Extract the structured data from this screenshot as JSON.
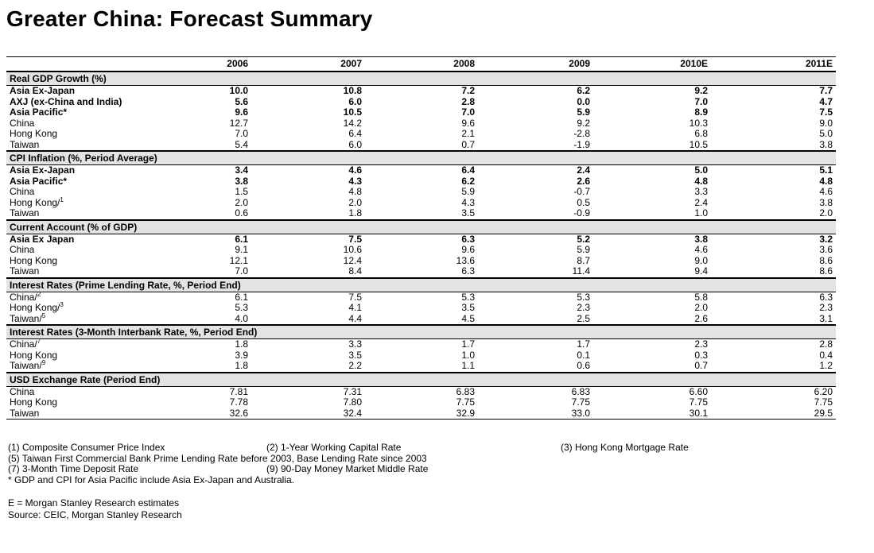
{
  "page": {
    "title": "Greater China: Forecast Summary"
  },
  "colors": {
    "section_header_bg": "#e3e3e3",
    "rule": "#000000"
  },
  "table": {
    "columns": [
      "2006",
      "2007",
      "2008",
      "2009",
      "2010E",
      "2011E"
    ],
    "sections": [
      {
        "header": "Real GDP Growth (%)",
        "rows": [
          {
            "label": "Asia Ex-Japan",
            "sup": "",
            "bold": true,
            "values": [
              "10.0",
              "10.8",
              "7.2",
              "6.2",
              "9.2",
              "7.7"
            ]
          },
          {
            "label": "AXJ (ex-China and India)",
            "sup": "",
            "bold": true,
            "values": [
              "5.6",
              "6.0",
              "2.8",
              "0.0",
              "7.0",
              "4.7"
            ]
          },
          {
            "label": "Asia Pacific*",
            "sup": "",
            "bold": true,
            "values": [
              "9.6",
              "10.5",
              "7.0",
              "5.9",
              "8.9",
              "7.5"
            ]
          },
          {
            "label": "China",
            "sup": "",
            "bold": false,
            "values": [
              "12.7",
              "14.2",
              "9.6",
              "9.2",
              "10.3",
              "9.0"
            ]
          },
          {
            "label": "Hong Kong",
            "sup": "",
            "bold": false,
            "values": [
              "7.0",
              "6.4",
              "2.1",
              "-2.8",
              "6.8",
              "5.0"
            ]
          },
          {
            "label": "Taiwan",
            "sup": "",
            "bold": false,
            "values": [
              "5.4",
              "6.0",
              "0.7",
              "-1.9",
              "10.5",
              "3.8"
            ]
          }
        ]
      },
      {
        "header": "CPI Inflation (%, Period Average)",
        "rows": [
          {
            "label": "Asia Ex-Japan",
            "sup": "",
            "bold": true,
            "values": [
              "3.4",
              "4.6",
              "6.4",
              "2.4",
              "5.0",
              "5.1"
            ]
          },
          {
            "label": "Asia Pacific*",
            "sup": "",
            "bold": true,
            "values": [
              "3.8",
              "4.3",
              "6.2",
              "2.6",
              "4.8",
              "4.8"
            ]
          },
          {
            "label": "China",
            "sup": "",
            "bold": false,
            "values": [
              "1.5",
              "4.8",
              "5.9",
              "-0.7",
              "3.3",
              "4.6"
            ]
          },
          {
            "label": "Hong Kong/",
            "sup": "1",
            "bold": false,
            "values": [
              "2.0",
              "2.0",
              "4.3",
              "0.5",
              "2.4",
              "3.8"
            ]
          },
          {
            "label": "Taiwan",
            "sup": "",
            "bold": false,
            "values": [
              "0.6",
              "1.8",
              "3.5",
              "-0.9",
              "1.0",
              "2.0"
            ]
          }
        ]
      },
      {
        "header": "Current Account (% of GDP)",
        "rows": [
          {
            "label": "Asia Ex Japan",
            "sup": "",
            "bold": true,
            "values": [
              "6.1",
              "7.5",
              "6.3",
              "5.2",
              "3.8",
              "3.2"
            ]
          },
          {
            "label": "China",
            "sup": "",
            "bold": false,
            "values": [
              "9.1",
              "10.6",
              "9.6",
              "5.9",
              "4.6",
              "3.6"
            ]
          },
          {
            "label": "Hong Kong",
            "sup": "",
            "bold": false,
            "values": [
              "12.1",
              "12.4",
              "13.6",
              "8.7",
              "9.0",
              "8.6"
            ]
          },
          {
            "label": "Taiwan",
            "sup": "",
            "bold": false,
            "values": [
              "7.0",
              "8.4",
              "6.3",
              "11.4",
              "9.4",
              "8.6"
            ]
          }
        ]
      },
      {
        "header": "Interest Rates (Prime Lending Rate, %, Period End)",
        "rows": [
          {
            "label": "China/",
            "sup": "2",
            "bold": false,
            "values": [
              "6.1",
              "7.5",
              "5.3",
              "5.3",
              "5.8",
              "6.3"
            ]
          },
          {
            "label": "Hong Kong/",
            "sup": "3",
            "bold": false,
            "values": [
              "5.3",
              "4.1",
              "3.5",
              "2.3",
              "2.0",
              "2.3"
            ]
          },
          {
            "label": "Taiwan/",
            "sup": "5",
            "bold": false,
            "values": [
              "4.0",
              "4.4",
              "4.5",
              "2.5",
              "2.6",
              "3.1"
            ]
          }
        ]
      },
      {
        "header": "Interest Rates (3-Month Interbank Rate, %, Period End)",
        "rows": [
          {
            "label": "China/",
            "sup": "7",
            "bold": false,
            "values": [
              "1.8",
              "3.3",
              "1.7",
              "1.7",
              "2.3",
              "2.8"
            ]
          },
          {
            "label": "Hong Kong",
            "sup": "",
            "bold": false,
            "values": [
              "3.9",
              "3.5",
              "1.0",
              "0.1",
              "0.3",
              "0.4"
            ]
          },
          {
            "label": "Taiwan/",
            "sup": "9",
            "bold": false,
            "values": [
              "1.8",
              "2.2",
              "1.1",
              "0.6",
              "0.7",
              "1.2"
            ]
          }
        ]
      },
      {
        "header": "USD Exchange Rate (Period End)",
        "rows": [
          {
            "label": "China",
            "sup": "",
            "bold": false,
            "values": [
              "7.81",
              "7.31",
              "6.83",
              "6.83",
              "6.60",
              "6.20"
            ]
          },
          {
            "label": "Hong Kong",
            "sup": "",
            "bold": false,
            "values": [
              "7.78",
              "7.80",
              "7.75",
              "7.75",
              "7.75",
              "7.75"
            ]
          },
          {
            "label": "Taiwan",
            "sup": "",
            "bold": false,
            "values": [
              "32.6",
              "32.4",
              "32.9",
              "33.0",
              "30.1",
              "29.5"
            ]
          }
        ]
      }
    ]
  },
  "footnotes": {
    "line1": [
      "(1) Composite Consumer Price Index",
      "(2) 1-Year Working Capital Rate",
      "(3) Hong Kong Mortgage Rate"
    ],
    "line2": "(5) Taiwan First Commercial Bank Prime Lending Rate before 2003, Base Lending Rate since 2003",
    "line3": [
      "(7) 3-Month Time Deposit Rate",
      "(9) 90-Day Money Market Middle Rate"
    ],
    "line4": "* GDP and CPI for Asia Pacific include Asia Ex-Japan and Australia."
  },
  "footer": {
    "estimates_note": "E = Morgan Stanley Research estimates",
    "source": "Source: CEIC, Morgan Stanley Research"
  }
}
